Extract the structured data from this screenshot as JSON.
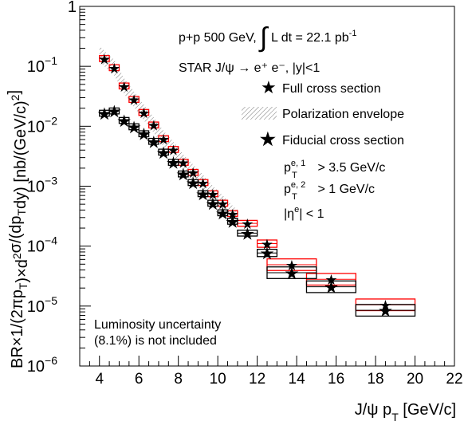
{
  "chart_data": {
    "type": "scatter",
    "title": "",
    "xlabel": {
      "base": "J/ψ p",
      "sub": "T",
      "unit": " [GeV/c]"
    },
    "ylabel": {
      "parts": [
        {
          "t": "BR×1/(2πp"
        },
        {
          "t": "T",
          "s": "sub"
        },
        {
          "t": ")×d"
        },
        {
          "t": "2",
          "s": "sup"
        },
        {
          "t": "σ/(dp"
        },
        {
          "t": "T",
          "s": "sub"
        },
        {
          "t": "dy) [nb/(GeV/c)"
        },
        {
          "t": "2",
          "s": "sup"
        },
        {
          "t": "]"
        }
      ]
    },
    "xlim": [
      3,
      22
    ],
    "ylim": [
      1e-06,
      1
    ],
    "y_scale": "log",
    "x_ticks": [
      4,
      6,
      8,
      10,
      12,
      14,
      16,
      18,
      20,
      22
    ],
    "y_ticks": [
      {
        "value": 1e-06,
        "mantissa": "10",
        "exp": "−6"
      },
      {
        "value": 1e-05,
        "mantissa": "10",
        "exp": "−5"
      },
      {
        "value": 0.0001,
        "mantissa": "10",
        "exp": "−4"
      },
      {
        "value": 0.001,
        "mantissa": "10",
        "exp": "−3"
      },
      {
        "value": 0.01,
        "mantissa": "10",
        "exp": "−2"
      },
      {
        "value": 0.1,
        "mantissa": "10",
        "exp": "−1"
      },
      {
        "value": 1,
        "mantissa": "1",
        "exp": ""
      }
    ],
    "annotations": {
      "line1": {
        "pre": "p+p 500 GeV, ",
        "integral": "∫",
        "mid": " L dt = 22.1 pb",
        "sup": "-1"
      },
      "line2": "STAR  J/ψ → e⁺ e⁻, |y|<1",
      "cuts": [
        {
          "base": "p",
          "sub": "T",
          "sup": "e, 1",
          "rest": " > 3.5 GeV/c"
        },
        {
          "base": "p",
          "sub": "T",
          "sup": "e, 2",
          "rest": " > 1 GeV/c"
        },
        {
          "base": "|η",
          "sub": "",
          "sup": "e",
          "rest": "| < 1"
        }
      ],
      "lumi_line1": "Luminosity uncertainty",
      "lumi_line2": "(8.1%) is not included"
    },
    "legend": {
      "placement": "top-right",
      "entries": [
        {
          "label": "Full cross section",
          "marker": "filled-star",
          "color": "#ff0000"
        },
        {
          "label": "Polarization envelope",
          "marker": "hatched-band",
          "color": "#888888"
        },
        {
          "label": "Fiducial cross section",
          "marker": "open-star",
          "color": "#000000"
        }
      ]
    },
    "series": [
      {
        "name": "Full cross section",
        "color": "#ff0000",
        "points": [
          {
            "x": 4.25,
            "y": 0.135,
            "xw": 0.25,
            "rel": 0.12
          },
          {
            "x": 4.75,
            "y": 0.095,
            "xw": 0.25,
            "rel": 0.12
          },
          {
            "x": 5.25,
            "y": 0.047,
            "xw": 0.25,
            "rel": 0.12
          },
          {
            "x": 5.75,
            "y": 0.028,
            "xw": 0.25,
            "rel": 0.12
          },
          {
            "x": 6.25,
            "y": 0.017,
            "xw": 0.25,
            "rel": 0.12
          },
          {
            "x": 6.75,
            "y": 0.0105,
            "xw": 0.25,
            "rel": 0.12
          },
          {
            "x": 7.25,
            "y": 0.0062,
            "xw": 0.25,
            "rel": 0.12
          },
          {
            "x": 7.75,
            "y": 0.0041,
            "xw": 0.25,
            "rel": 0.12
          },
          {
            "x": 8.25,
            "y": 0.0025,
            "xw": 0.25,
            "rel": 0.12
          },
          {
            "x": 8.75,
            "y": 0.0017,
            "xw": 0.25,
            "rel": 0.12
          },
          {
            "x": 9.25,
            "y": 0.00115,
            "xw": 0.25,
            "rel": 0.12
          },
          {
            "x": 9.75,
            "y": 0.00075,
            "xw": 0.25,
            "rel": 0.12
          },
          {
            "x": 10.25,
            "y": 0.00052,
            "xw": 0.25,
            "rel": 0.12
          },
          {
            "x": 10.75,
            "y": 0.00035,
            "xw": 0.25,
            "rel": 0.12
          },
          {
            "x": 11.5,
            "y": 0.00024,
            "xw": 0.5,
            "rel": 0.12
          },
          {
            "x": 12.5,
            "y": 0.00011,
            "xw": 0.5,
            "rel": 0.15
          },
          {
            "x": 13.75,
            "y": 4.9e-05,
            "xw": 1.25,
            "rel": 0.25
          },
          {
            "x": 15.75,
            "y": 2.8e-05,
            "xw": 1.25,
            "rel": 0.25
          },
          {
            "x": 18.5,
            "y": 1.05e-05,
            "xw": 1.5,
            "rel": 0.25
          }
        ]
      },
      {
        "name": "Fiducial cross section",
        "color": "#000000",
        "points": [
          {
            "x": 4.25,
            "y": 0.0165,
            "xw": 0.25,
            "rel": 0.12
          },
          {
            "x": 4.75,
            "y": 0.018,
            "xw": 0.25,
            "rel": 0.12
          },
          {
            "x": 5.25,
            "y": 0.0125,
            "xw": 0.25,
            "rel": 0.12
          },
          {
            "x": 5.75,
            "y": 0.0098,
            "xw": 0.25,
            "rel": 0.12
          },
          {
            "x": 6.25,
            "y": 0.0075,
            "xw": 0.25,
            "rel": 0.12
          },
          {
            "x": 6.75,
            "y": 0.0056,
            "xw": 0.25,
            "rel": 0.12
          },
          {
            "x": 7.25,
            "y": 0.0037,
            "xw": 0.25,
            "rel": 0.12
          },
          {
            "x": 7.75,
            "y": 0.0025,
            "xw": 0.25,
            "rel": 0.12
          },
          {
            "x": 8.25,
            "y": 0.0016,
            "xw": 0.25,
            "rel": 0.12
          },
          {
            "x": 8.75,
            "y": 0.00115,
            "xw": 0.25,
            "rel": 0.12
          },
          {
            "x": 9.25,
            "y": 0.00075,
            "xw": 0.25,
            "rel": 0.12
          },
          {
            "x": 9.75,
            "y": 0.00052,
            "xw": 0.25,
            "rel": 0.12
          },
          {
            "x": 10.25,
            "y": 0.00036,
            "xw": 0.25,
            "rel": 0.12
          },
          {
            "x": 10.75,
            "y": 0.00026,
            "xw": 0.25,
            "rel": 0.12
          },
          {
            "x": 11.5,
            "y": 0.000165,
            "xw": 0.5,
            "rel": 0.12
          },
          {
            "x": 12.5,
            "y": 7.7e-05,
            "xw": 0.5,
            "rel": 0.15
          },
          {
            "x": 13.75,
            "y": 3.6e-05,
            "xw": 1.25,
            "rel": 0.25
          },
          {
            "x": 15.75,
            "y": 2.1e-05,
            "xw": 1.25,
            "rel": 0.25
          },
          {
            "x": 18.5,
            "y": 8.5e-06,
            "xw": 1.5,
            "rel": 0.25
          }
        ]
      }
    ],
    "polarization_band": {
      "x_range": [
        4.0,
        11.0
      ],
      "rel_half_width": 0.35
    }
  }
}
